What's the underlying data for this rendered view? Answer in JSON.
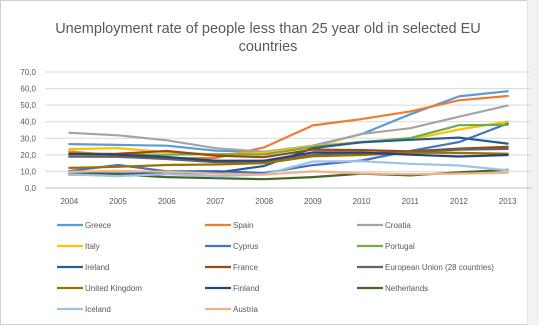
{
  "chart_data": {
    "type": "line",
    "title_lines": [
      "Unemployment rate of people less than 25 year old in selected EU",
      "countries"
    ],
    "xlabel": "",
    "ylabel": "",
    "ylim": [
      0,
      70
    ],
    "y_ticks": [
      "0,0",
      "10,0",
      "20,0",
      "30,0",
      "40,0",
      "50,0",
      "60,0",
      "70,0"
    ],
    "grid": true,
    "legend_position": "bottom",
    "x": [
      "2004",
      "2005",
      "2006",
      "2007",
      "2008",
      "2009",
      "2010",
      "2011",
      "2012",
      "2013"
    ],
    "series": [
      {
        "name": "Greece",
        "color": "#5b9bd5",
        "values": [
          26.5,
          26.0,
          25.5,
          22.5,
          21.8,
          25.5,
          32.5,
          44.5,
          55.3,
          58.4
        ]
      },
      {
        "name": "Spain",
        "color": "#ed7d31",
        "values": [
          22.0,
          19.6,
          17.9,
          18.1,
          24.5,
          37.8,
          41.6,
          46.2,
          52.9,
          55.5
        ]
      },
      {
        "name": "Croatia",
        "color": "#a5a5a5",
        "values": [
          33.3,
          31.8,
          28.8,
          24.0,
          21.9,
          25.1,
          32.6,
          36.1,
          43.0,
          49.7
        ]
      },
      {
        "name": "Italy",
        "color": "#ffc000",
        "values": [
          23.5,
          24.1,
          21.6,
          20.3,
          21.2,
          25.3,
          27.9,
          29.2,
          35.3,
          40.0
        ]
      },
      {
        "name": "Cyprus",
        "color": "#4472c4",
        "values": [
          10.2,
          13.9,
          10.0,
          10.2,
          9.0,
          13.8,
          16.6,
          22.4,
          27.7,
          38.9
        ]
      },
      {
        "name": "Portugal",
        "color": "#70ad47",
        "values": [
          19.8,
          20.2,
          20.1,
          20.4,
          20.2,
          24.8,
          27.7,
          30.1,
          37.9,
          38.1
        ]
      },
      {
        "name": "Ireland",
        "color": "#255e91",
        "values": [
          9.0,
          8.7,
          8.7,
          9.1,
          13.3,
          24.0,
          27.6,
          29.1,
          30.4,
          26.8
        ]
      },
      {
        "name": "France",
        "color": "#9e480e",
        "values": [
          20.6,
          20.7,
          22.3,
          19.5,
          18.6,
          23.2,
          22.9,
          22.1,
          23.8,
          24.8
        ]
      },
      {
        "name": "European Union (28 countries)",
        "color": "#636363",
        "values": [
          18.9,
          18.8,
          17.5,
          15.6,
          15.7,
          19.9,
          21.0,
          21.6,
          23.2,
          23.6
        ]
      },
      {
        "name": "United Kingdom",
        "color": "#997300",
        "values": [
          12.1,
          12.8,
          13.9,
          14.2,
          15.0,
          19.1,
          19.9,
          21.3,
          21.2,
          20.7
        ]
      },
      {
        "name": "Finland",
        "color": "#264478",
        "values": [
          20.7,
          20.1,
          18.7,
          16.5,
          16.5,
          21.5,
          21.4,
          20.1,
          19.0,
          19.9
        ]
      },
      {
        "name": "Netherlands",
        "color": "#43682b",
        "values": [
          8.0,
          8.2,
          6.6,
          5.9,
          5.3,
          6.6,
          8.7,
          7.6,
          9.5,
          11.0
        ]
      },
      {
        "name": "Iceland",
        "color": "#9dc3e6",
        "values": [
          8.2,
          7.2,
          8.4,
          7.1,
          8.2,
          16.0,
          16.2,
          14.6,
          13.6,
          10.7
        ]
      },
      {
        "name": "Austria",
        "color": "#f4b183",
        "values": [
          9.7,
          10.3,
          9.8,
          8.7,
          8.0,
          10.0,
          8.8,
          8.3,
          8.7,
          9.2
        ]
      }
    ]
  }
}
